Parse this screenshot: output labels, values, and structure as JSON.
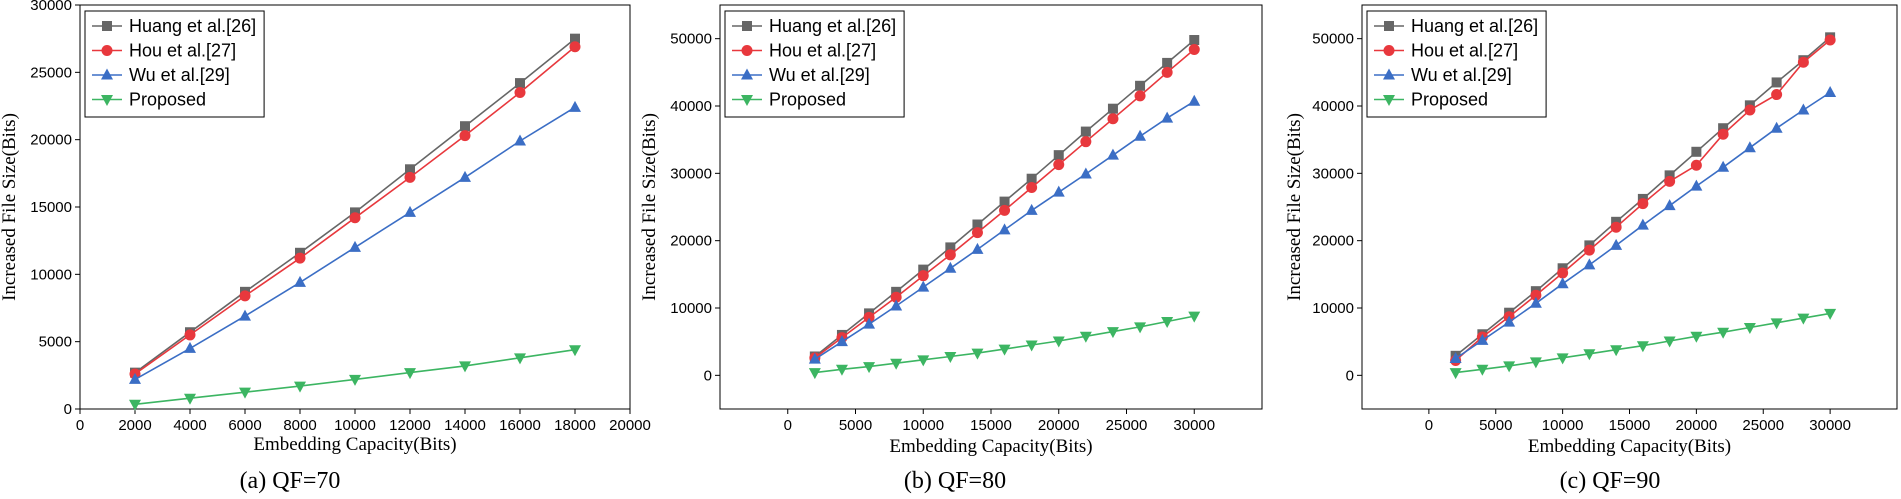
{
  "chart_data": [
    {
      "type": "line",
      "caption": "(a) QF=70",
      "xlabel": "Embedding Capacity(Bits)",
      "ylabel": "Increased File Size(Bits)",
      "xlim": [
        0,
        20000
      ],
      "ylim": [
        0,
        30000
      ],
      "xticks": [
        "0",
        "2000",
        "4000",
        "6000",
        "8000",
        "10000",
        "12000",
        "14000",
        "16000",
        "18000",
        "20000"
      ],
      "yticks": [
        "0",
        "5000",
        "10000",
        "15000",
        "20000",
        "25000",
        "30000"
      ],
      "legend_position": "top-left",
      "x": [
        2000,
        4000,
        6000,
        8000,
        10000,
        12000,
        14000,
        16000,
        18000
      ],
      "series": [
        {
          "name": "Huang et al.[26]",
          "color": "#666666",
          "marker": "square",
          "values": [
            2700,
            5700,
            8700,
            11600,
            14600,
            17800,
            21000,
            24200,
            27500
          ]
        },
        {
          "name": "Hou et al.[27]",
          "color": "#e8383d",
          "marker": "circle",
          "values": [
            2600,
            5500,
            8400,
            11200,
            14200,
            17200,
            20300,
            23500,
            26900
          ]
        },
        {
          "name": "Wu et al.[29]",
          "color": "#3b6ec5",
          "marker": "triangle-up",
          "values": [
            2200,
            4500,
            6900,
            9400,
            12000,
            14600,
            17200,
            19900,
            22400
          ]
        },
        {
          "name": "Proposed",
          "color": "#3cb562",
          "marker": "triangle-down",
          "values": [
            350,
            800,
            1250,
            1700,
            2200,
            2700,
            3200,
            3800,
            4400
          ]
        }
      ]
    },
    {
      "type": "line",
      "caption": "(b) QF=80",
      "xlabel": "Embedding Capacity(Bits)",
      "ylabel": "Increased File Size(Bits)",
      "xlim": [
        -5000,
        35000
      ],
      "ylim": [
        -5000,
        55000
      ],
      "xticks": [
        "0",
        "5000",
        "10000",
        "15000",
        "20000",
        "25000",
        "30000"
      ],
      "yticks": [
        "0",
        "10000",
        "20000",
        "30000",
        "40000",
        "50000"
      ],
      "legend_position": "top-left",
      "x": [
        2000,
        4000,
        6000,
        8000,
        10000,
        12000,
        14000,
        16000,
        18000,
        20000,
        22000,
        24000,
        26000,
        28000,
        30000
      ],
      "series": [
        {
          "name": "Huang et al.[26]",
          "color": "#666666",
          "marker": "square",
          "values": [
            2800,
            6000,
            9200,
            12400,
            15700,
            19000,
            22400,
            25800,
            29200,
            32700,
            36200,
            39600,
            43000,
            46400,
            49800
          ]
        },
        {
          "name": "Hou et al.[27]",
          "color": "#e8383d",
          "marker": "circle",
          "values": [
            2600,
            5600,
            8600,
            11600,
            14800,
            17900,
            21200,
            24500,
            27900,
            31300,
            34700,
            38100,
            41500,
            45000,
            48400
          ]
        },
        {
          "name": "Wu et al.[29]",
          "color": "#3b6ec5",
          "marker": "triangle-up",
          "values": [
            2400,
            5000,
            7600,
            10300,
            13100,
            15900,
            18700,
            21600,
            24500,
            27200,
            29900,
            32700,
            35500,
            38200,
            40700
          ]
        },
        {
          "name": "Proposed",
          "color": "#3cb562",
          "marker": "triangle-down",
          "values": [
            400,
            900,
            1300,
            1800,
            2300,
            2800,
            3300,
            3900,
            4500,
            5100,
            5800,
            6500,
            7200,
            8000,
            8800
          ]
        }
      ]
    },
    {
      "type": "line",
      "caption": "(c) QF=90",
      "xlabel": "Embedding Capacity(Bits)",
      "ylabel": "Increased File Size(Bits)",
      "xlim": [
        -5000,
        35000
      ],
      "ylim": [
        -5000,
        55000
      ],
      "xticks": [
        "0",
        "5000",
        "10000",
        "15000",
        "20000",
        "25000",
        "30000"
      ],
      "yticks": [
        "0",
        "10000",
        "20000",
        "30000",
        "40000",
        "50000"
      ],
      "legend_position": "top-left",
      "x": [
        2000,
        4000,
        6000,
        8000,
        10000,
        12000,
        14000,
        16000,
        18000,
        20000,
        22000,
        24000,
        26000,
        28000,
        30000
      ],
      "series": [
        {
          "name": "Huang et al.[26]",
          "color": "#666666",
          "marker": "square",
          "values": [
            2900,
            6100,
            9300,
            12500,
            15900,
            19300,
            22800,
            26200,
            29700,
            33200,
            36700,
            40100,
            43500,
            46800,
            50200
          ]
        },
        {
          "name": "Hou et al.[27]",
          "color": "#e8383d",
          "marker": "circle",
          "values": [
            2200,
            5700,
            8700,
            11900,
            15200,
            18600,
            22000,
            25500,
            28800,
            31200,
            35800,
            39400,
            41700,
            46500,
            49800
          ]
        },
        {
          "name": "Wu et al.[29]",
          "color": "#3b6ec5",
          "marker": "triangle-up",
          "values": [
            2500,
            5200,
            7900,
            10700,
            13600,
            16400,
            19300,
            22300,
            25200,
            28100,
            30900,
            33800,
            36700,
            39400,
            42000
          ]
        },
        {
          "name": "Proposed",
          "color": "#3cb562",
          "marker": "triangle-down",
          "values": [
            400,
            900,
            1400,
            2000,
            2600,
            3200,
            3800,
            4400,
            5100,
            5800,
            6400,
            7100,
            7800,
            8500,
            9200
          ]
        }
      ]
    }
  ]
}
